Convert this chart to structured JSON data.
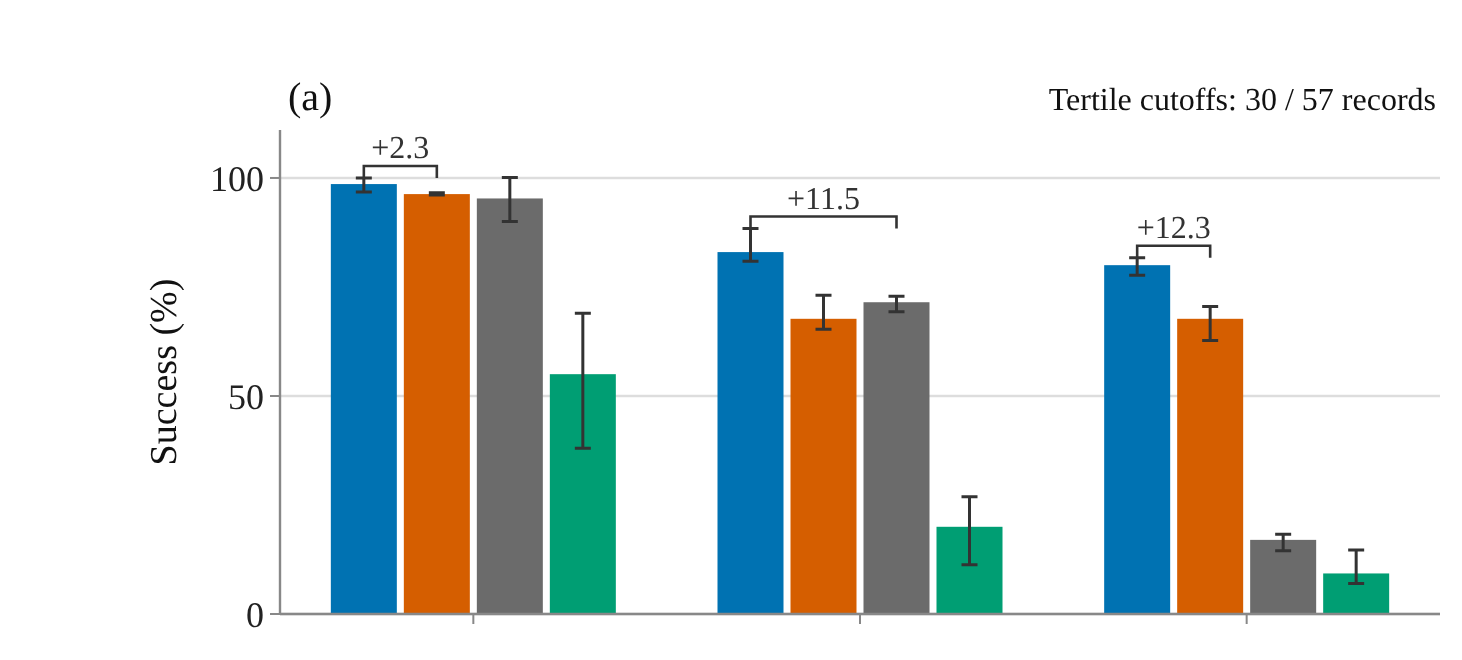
{
  "chart_data": {
    "type": "bar",
    "title": "(a)",
    "subtitle": "Tertile cutoffs: 30 / 57 records",
    "ylabel": "Success (%)",
    "categories": [
      null,
      null,
      null
    ],
    "series": [
      {
        "color": "#0072b2",
        "values": [
          98.6,
          83,
          80
        ],
        "errors": [
          [
            96.8,
            100
          ],
          [
            80.9,
            88.4
          ],
          [
            77.7,
            81.7
          ]
        ]
      },
      {
        "color": "#d55e00",
        "values": [
          96.3,
          67.7,
          67.7
        ],
        "errors": [
          [
            96.1,
            96.6
          ],
          [
            65.3,
            73.1
          ],
          [
            62.7,
            70.5
          ]
        ]
      },
      {
        "color": "#6b6b6b",
        "values": [
          95.3,
          71.5,
          17
        ],
        "errors": [
          [
            90,
            100.1
          ],
          [
            69.3,
            72.9
          ],
          [
            14.5,
            18.3
          ]
        ]
      },
      {
        "color": "#009e73",
        "values": [
          55,
          20,
          9.3
        ],
        "errors": [
          [
            38,
            69
          ],
          [
            11.3,
            26.9
          ],
          [
            7,
            14.7
          ]
        ]
      }
    ],
    "annotations": [
      "+2.3",
      "+11.5",
      "+12.3"
    ],
    "ylim": [
      0,
      111
    ],
    "yticks": [
      0,
      50,
      100
    ],
    "grid": "y",
    "tick_labels": "y"
  }
}
